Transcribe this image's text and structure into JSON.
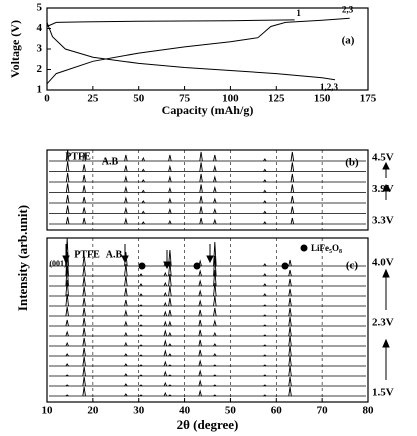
{
  "chart_data": [
    {
      "type": "line",
      "panel": "(a)",
      "xlabel": "Capacity (mAh/g)",
      "ylabel": "Voltage (V)",
      "xlim": [
        0,
        175
      ],
      "xticks": [
        0,
        25,
        50,
        75,
        100,
        125,
        150,
        175
      ],
      "ylim": [
        1,
        5
      ],
      "yticks": [
        1,
        2,
        3,
        4,
        5
      ],
      "series": [
        {
          "name": "1",
          "color": "#000000",
          "x": [
            0,
            5,
            20,
            50,
            100,
            135
          ],
          "values": [
            4.1,
            4.3,
            4.32,
            4.35,
            4.38,
            4.42
          ]
        },
        {
          "name": "2,3",
          "color": "#000000",
          "x": [
            0,
            5,
            25,
            50,
            75,
            100,
            115,
            122,
            130,
            150,
            165
          ],
          "values": [
            1.3,
            1.8,
            2.4,
            2.8,
            3.1,
            3.35,
            3.55,
            4.1,
            4.3,
            4.4,
            4.5
          ]
        },
        {
          "name": "1,2,3",
          "color": "#000000",
          "x": [
            0,
            3,
            10,
            25,
            50,
            75,
            100,
            125,
            150,
            157
          ],
          "values": [
            4.3,
            3.6,
            3.0,
            2.6,
            2.3,
            2.1,
            1.95,
            1.8,
            1.6,
            1.5
          ]
        }
      ]
    },
    {
      "type": "waterfall",
      "panel": "(b)",
      "annotations": [
        "PTFE",
        "A.B"
      ],
      "xlim": [
        10,
        80
      ],
      "peaks": [
        14.5,
        18.1,
        27.2,
        31,
        36.8,
        43.6,
        46.6,
        57.5,
        63.5
      ],
      "series": [
        {
          "values": [
            7,
            6,
            5,
            2,
            3,
            6,
            4,
            2,
            6
          ]
        },
        {
          "values": [
            8,
            6,
            5,
            2,
            4,
            7,
            4,
            2,
            7
          ]
        },
        {
          "values": [
            8,
            6,
            5,
            2,
            4,
            7,
            4,
            2,
            7
          ]
        },
        {
          "values": [
            9,
            7,
            5,
            2,
            4,
            8,
            5,
            2,
            8
          ]
        },
        {
          "values": [
            9,
            7,
            5,
            2,
            5,
            8,
            5,
            2,
            8
          ]
        },
        {
          "values": [
            10,
            7,
            6,
            2,
            5,
            9,
            5,
            2,
            9
          ]
        },
        {
          "values": [
            11,
            8,
            6,
            3,
            6,
            9,
            6,
            2,
            9
          ]
        }
      ],
      "trace_labels": [
        "3.3V",
        null,
        null,
        "3.9V",
        null,
        null,
        "4.5V"
      ]
    },
    {
      "type": "waterfall",
      "panel": "(c)",
      "xlabel": "2θ (degree)",
      "ylabel": "Intensity (arb.unit)",
      "annotations": [
        "(001)",
        "PTFE",
        "A.B"
      ],
      "legend": [
        "LiFe",
        "5",
        "O",
        "8"
      ],
      "xlim": [
        10,
        80
      ],
      "xticks": [
        10,
        20,
        30,
        40,
        50,
        60,
        70,
        80
      ],
      "peaks": [
        14.4,
        18.1,
        27.2,
        30.5,
        35.8,
        36.8,
        43.4,
        46.6,
        57.5,
        63.0
      ],
      "series": [
        {
          "values": [
            1,
            9,
            2,
            1,
            3,
            1,
            5,
            1,
            1,
            9
          ]
        },
        {
          "values": [
            1,
            9,
            2,
            1,
            3,
            1,
            5,
            1,
            1,
            9
          ]
        },
        {
          "values": [
            1,
            9,
            2,
            1,
            4,
            1,
            5,
            1,
            1,
            10
          ]
        },
        {
          "values": [
            2,
            9,
            2,
            1,
            4,
            1,
            5,
            1,
            1,
            10
          ]
        },
        {
          "values": [
            2,
            8,
            2,
            1,
            5,
            2,
            6,
            2,
            1,
            10
          ]
        },
        {
          "values": [
            3,
            8,
            3,
            1,
            5,
            2,
            6,
            2,
            1,
            10
          ]
        },
        {
          "values": [
            4,
            8,
            3,
            1,
            5,
            3,
            6,
            3,
            1,
            9
          ]
        },
        {
          "values": [
            6,
            8,
            4,
            1,
            4,
            4,
            6,
            5,
            1,
            9
          ]
        },
        {
          "values": [
            9,
            8,
            5,
            1,
            4,
            6,
            6,
            8,
            1,
            8
          ]
        },
        {
          "values": [
            12,
            8,
            6,
            1,
            3,
            8,
            5,
            10,
            1,
            8
          ]
        },
        {
          "values": [
            16,
            9,
            8,
            2,
            3,
            10,
            5,
            13,
            2,
            7
          ]
        },
        {
          "values": [
            20,
            9,
            10,
            2,
            3,
            12,
            5,
            16,
            2,
            7
          ]
        },
        {
          "values": [
            24,
            10,
            12,
            2,
            3,
            14,
            5,
            20,
            2,
            6
          ]
        },
        {
          "values": [
            28,
            10,
            14,
            2,
            3,
            16,
            5,
            24,
            2,
            6
          ]
        }
      ],
      "trace_labels": [
        "1.5V",
        null,
        null,
        null,
        null,
        null,
        null,
        "2.3V",
        null,
        null,
        null,
        null,
        null,
        "4.0V"
      ]
    }
  ]
}
